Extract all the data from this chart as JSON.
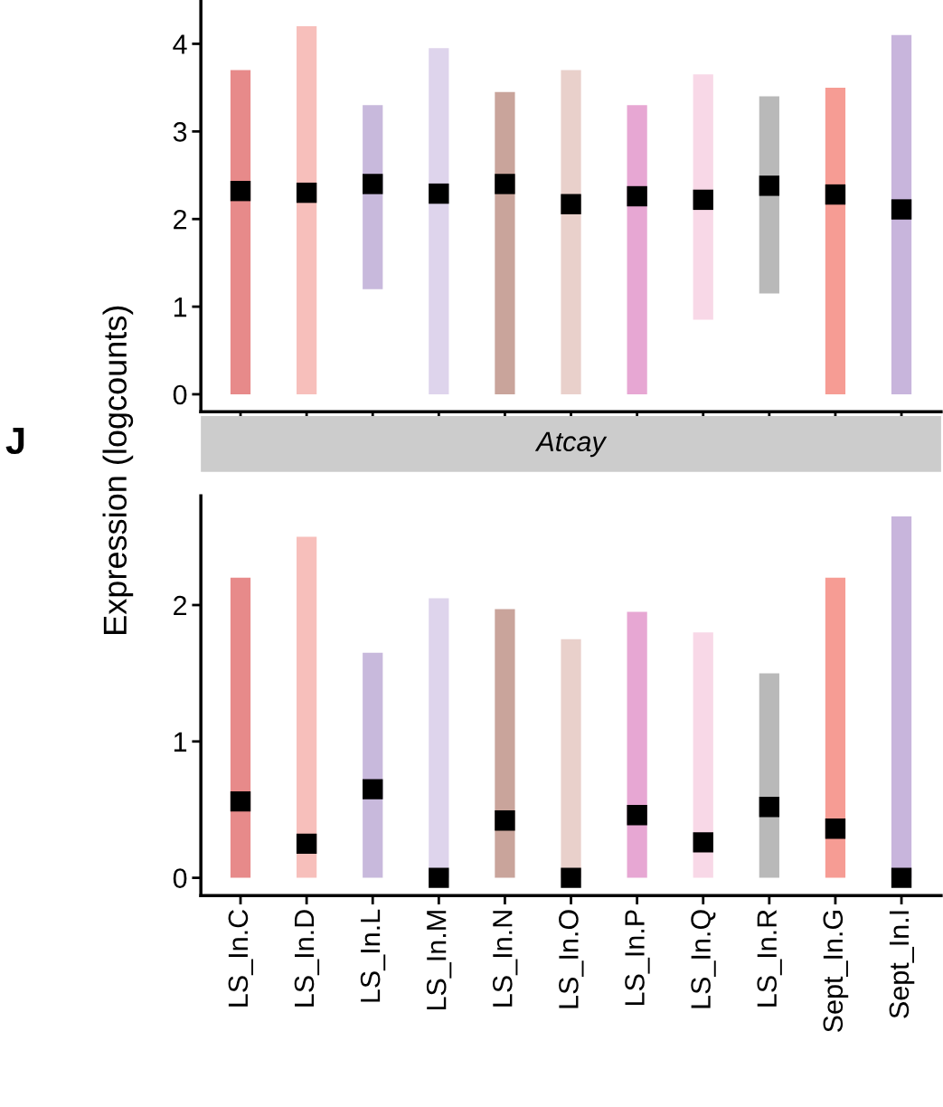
{
  "chart_data": [
    {
      "type": "scatter",
      "ylabel": "Expression (logcounts)",
      "categories": [
        null,
        null,
        null,
        null,
        null,
        null,
        null,
        null,
        null,
        null,
        null
      ],
      "series": [
        {
          "color": "#000000",
          "values": [
            2.32,
            2.3,
            2.4,
            2.29,
            2.4,
            2.17,
            2.26,
            2.22,
            2.38,
            2.28,
            2.11
          ],
          "errors": [
            [
              0,
              3.7
            ],
            [
              0,
              4.2
            ],
            [
              1.2,
              3.3
            ],
            [
              0,
              3.95
            ],
            [
              0,
              3.45
            ],
            [
              0,
              3.7
            ],
            [
              0,
              3.3
            ],
            [
              0.85,
              3.65
            ],
            [
              1.15,
              3.4
            ],
            [
              0,
              3.5
            ],
            [
              0,
              4.1
            ]
          ]
        }
      ],
      "colors": [
        "#d42a2a",
        "#f08a84",
        "#9b7fc0",
        "#c2b0dc",
        "#9c5a48",
        "#d7aaa0",
        "#d35fae",
        "#f2b8d4",
        "#7f7f7f",
        "#ef4a3c",
        "#9a78c0"
      ],
      "marker": "square",
      "ylim": [
        -0.2,
        4.5
      ],
      "yticks": [
        0,
        1,
        2,
        3,
        4
      ],
      "tick_labels": "y",
      "grid": false
    },
    {
      "type": "scatter",
      "title": "Atcay",
      "annotations": [
        "J"
      ],
      "categories": [
        "LS_In.C",
        "LS_In.D",
        "LS_In.L",
        "LS_In.M",
        "LS_In.N",
        "LS_In.O",
        "LS_In.P",
        "LS_In.Q",
        "LS_In.R",
        "Sept_In.G",
        "Sept_In.I"
      ],
      "series": [
        {
          "color": "#000000",
          "values": [
            0.56,
            0.25,
            0.65,
            0,
            0.42,
            0,
            0.46,
            0.26,
            0.52,
            0.36,
            0
          ],
          "errors": [
            [
              0,
              2.2
            ],
            [
              0,
              2.5
            ],
            [
              0,
              1.65
            ],
            [
              0,
              2.05
            ],
            [
              0,
              1.97
            ],
            [
              0,
              1.75
            ],
            [
              0,
              1.95
            ],
            [
              0,
              1.8
            ],
            [
              0,
              1.5
            ],
            [
              0,
              2.2
            ],
            [
              0,
              2.65
            ]
          ]
        }
      ],
      "colors": [
        "#d42a2a",
        "#f08a84",
        "#9b7fc0",
        "#c2b0dc",
        "#9c5a48",
        "#d7aaa0",
        "#d35fae",
        "#f2b8d4",
        "#7f7f7f",
        "#ef4a3c",
        "#9a78c0"
      ],
      "marker": "square",
      "ylim": [
        -0.13,
        2.8
      ],
      "yticks": [
        0,
        1,
        2
      ],
      "grid": false
    }
  ]
}
